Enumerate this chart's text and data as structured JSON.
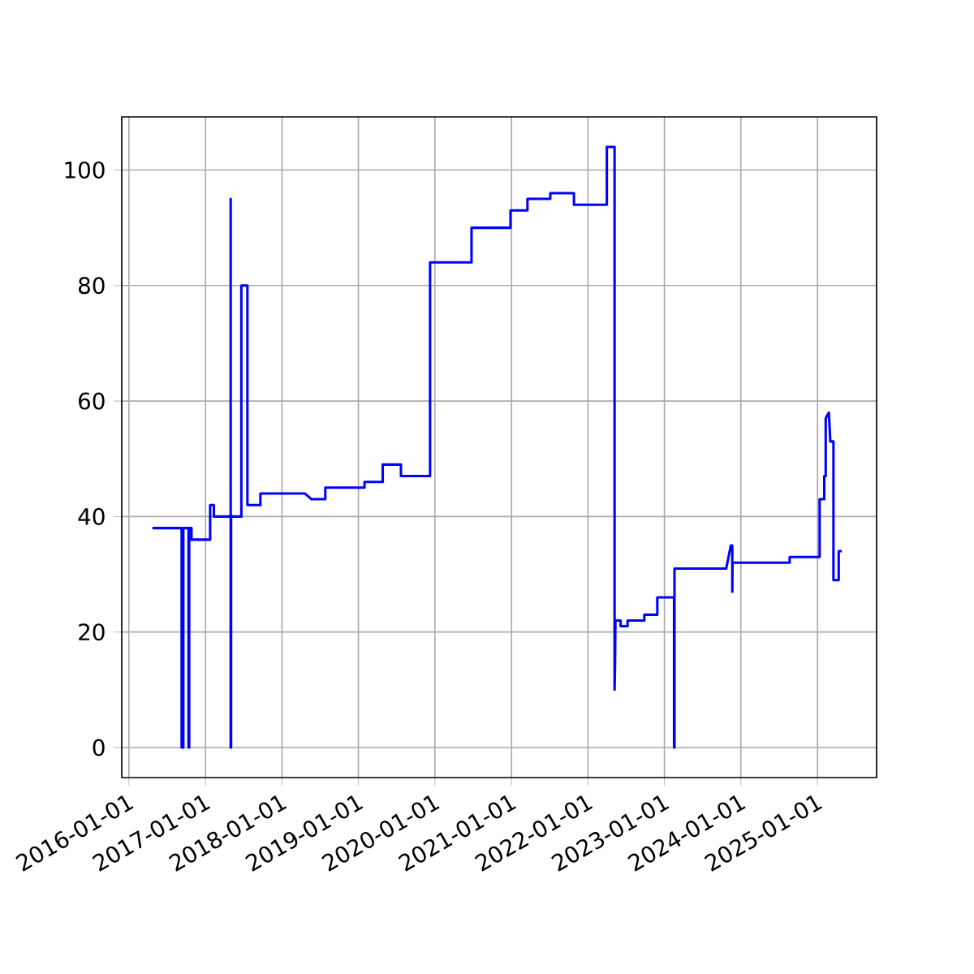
{
  "chart_data": {
    "type": "line",
    "color": "#0000ff",
    "grid": true,
    "x": [
      "2016-04-22",
      "2016-09-09",
      "2016-09-09",
      "2016-09-17",
      "2016-09-17",
      "2016-10-12",
      "2016-10-12",
      "2016-10-15",
      "2016-10-15",
      "2016-10-26",
      "2016-10-26",
      "2017-01-23",
      "2017-01-23",
      "2017-02-10",
      "2017-02-10",
      "2017-05-01",
      "2017-05-01",
      "2017-05-01",
      "2017-05-03",
      "2017-05-03",
      "2017-06-21",
      "2017-06-21",
      "2017-07-20",
      "2017-07-20",
      "2017-09-20",
      "2017-09-20",
      "2018-04-20",
      "2018-05-22",
      "2018-07-27",
      "2018-07-27",
      "2019-01-30",
      "2019-01-30",
      "2019-04-27",
      "2019-04-27",
      "2019-07-23",
      "2019-07-23",
      "2019-12-09",
      "2019-12-09",
      "2020-06-24",
      "2020-06-24",
      "2020-12-27",
      "2020-12-27",
      "2021-03-18",
      "2021-03-18",
      "2021-07-05",
      "2021-07-05",
      "2021-10-26",
      "2021-10-26",
      "2022-04-01",
      "2022-04-01",
      "2022-05-08",
      "2022-05-08",
      "2022-05-10",
      "2022-05-12",
      "2022-06-06",
      "2022-06-06",
      "2022-07-09",
      "2022-07-09",
      "2022-09-27",
      "2022-09-27",
      "2022-11-28",
      "2022-11-28",
      "2023-02-16",
      "2023-02-16",
      "2023-02-18",
      "2023-02-18",
      "2023-10-23",
      "2023-11-14",
      "2023-11-21",
      "2023-11-21",
      "2023-11-22",
      "2024-08-21",
      "2024-08-21",
      "2025-01-11",
      "2025-01-11",
      "2025-02-02",
      "2025-02-02",
      "2025-02-09",
      "2025-02-09",
      "2025-02-24",
      "2025-03-03",
      "2025-03-18",
      "2025-03-18",
      "2025-04-12",
      "2025-04-12",
      "2025-04-27"
    ],
    "values": [
      38,
      38,
      0,
      0,
      38,
      38,
      0,
      0,
      38,
      38,
      36,
      36,
      42,
      42,
      40,
      40,
      95,
      0,
      0,
      40,
      40,
      80,
      80,
      42,
      42,
      44,
      44,
      43,
      43,
      45,
      45,
      46,
      46,
      49,
      49,
      47,
      47,
      84,
      84,
      90,
      90,
      93,
      93,
      95,
      95,
      96,
      96,
      94,
      94,
      104,
      104,
      10,
      14,
      22,
      22,
      21,
      21,
      22,
      22,
      23,
      23,
      26,
      26,
      0,
      0,
      31,
      31,
      35,
      35,
      27,
      32,
      32,
      33,
      33,
      43,
      43,
      47,
      47,
      57,
      58,
      53,
      53,
      29,
      29,
      34,
      34
    ],
    "xlim": [
      "2015-11-28",
      "2025-10-10"
    ],
    "ylim": [
      -5.2,
      109.2
    ],
    "xticks": [
      "2016-01-01",
      "2017-01-01",
      "2018-01-01",
      "2019-01-01",
      "2020-01-01",
      "2021-01-01",
      "2022-01-01",
      "2023-01-01",
      "2024-01-01",
      "2025-01-01"
    ],
    "yticks": [
      0,
      20,
      40,
      60,
      80,
      100
    ]
  }
}
